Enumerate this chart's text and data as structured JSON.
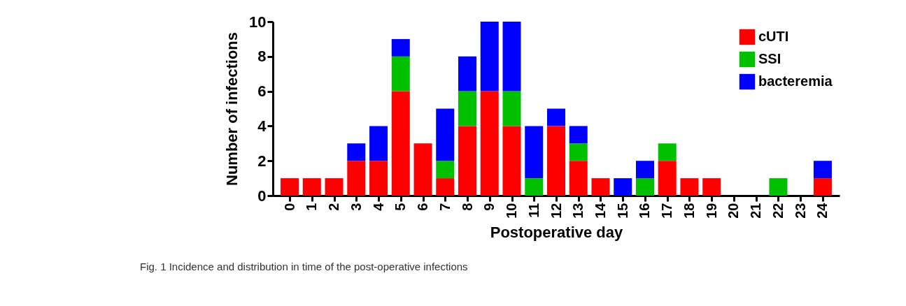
{
  "chart_data": {
    "type": "bar",
    "stacked": true,
    "xlabel": "Postoperative day",
    "ylabel": "Number of infections",
    "categories": [
      "0",
      "1",
      "2",
      "3",
      "4",
      "5",
      "6",
      "7",
      "8",
      "9",
      "10",
      "11",
      "12",
      "13",
      "14",
      "15",
      "16",
      "17",
      "18",
      "19",
      "20",
      "21",
      "22",
      "23",
      "24"
    ],
    "series": [
      {
        "name": "cUTI",
        "color": "#ff0000",
        "values": [
          1,
          1,
          1,
          2,
          2,
          6,
          3,
          1,
          4,
          6,
          4,
          0,
          4,
          2,
          1,
          0,
          0,
          2,
          1,
          1,
          0,
          0,
          0,
          0,
          1
        ]
      },
      {
        "name": "SSI",
        "color": "#00c000",
        "values": [
          0,
          0,
          0,
          0,
          0,
          2,
          0,
          1,
          2,
          0,
          2,
          1,
          0,
          1,
          0,
          0,
          1,
          1,
          0,
          0,
          0,
          0,
          1,
          0,
          0
        ]
      },
      {
        "name": "bacteremia",
        "color": "#0000ff",
        "values": [
          0,
          0,
          0,
          1,
          2,
          1,
          0,
          3,
          2,
          4,
          4,
          3,
          1,
          1,
          0,
          1,
          1,
          0,
          0,
          0,
          0,
          0,
          0,
          0,
          1
        ]
      }
    ],
    "ylim": [
      0,
      10
    ],
    "yticks": [
      0,
      2,
      4,
      6,
      8,
      10
    ],
    "grid": false,
    "legend": "top right",
    "annotations": [
      "Fig. 1 Incidence and distribution in time of the post-operative infections"
    ]
  }
}
